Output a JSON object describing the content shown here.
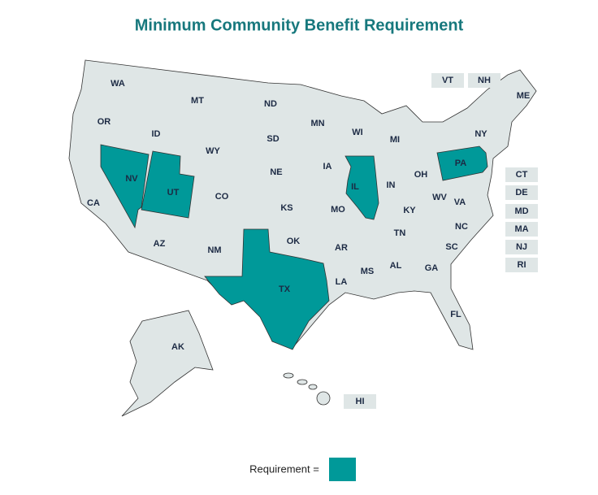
{
  "title": "Minimum Community Benefit Requirement",
  "base_color": "#dfe6e6",
  "requirement_color": "#009999",
  "states": [
    {
      "label": "WA",
      "requirement": false
    },
    {
      "label": "OR",
      "requirement": false
    },
    {
      "label": "CA",
      "requirement": false
    },
    {
      "label": "NV",
      "requirement": true
    },
    {
      "label": "ID",
      "requirement": false
    },
    {
      "label": "MT",
      "requirement": false
    },
    {
      "label": "WY",
      "requirement": false
    },
    {
      "label": "UT",
      "requirement": true
    },
    {
      "label": "CO",
      "requirement": false
    },
    {
      "label": "AZ",
      "requirement": false
    },
    {
      "label": "NM",
      "requirement": false
    },
    {
      "label": "ND",
      "requirement": false
    },
    {
      "label": "SD",
      "requirement": false
    },
    {
      "label": "NE",
      "requirement": false
    },
    {
      "label": "KS",
      "requirement": false
    },
    {
      "label": "OK",
      "requirement": false
    },
    {
      "label": "TX",
      "requirement": true
    },
    {
      "label": "MN",
      "requirement": false
    },
    {
      "label": "IA",
      "requirement": false
    },
    {
      "label": "MO",
      "requirement": false
    },
    {
      "label": "AR",
      "requirement": false
    },
    {
      "label": "LA",
      "requirement": false
    },
    {
      "label": "WI",
      "requirement": false
    },
    {
      "label": "IL",
      "requirement": true
    },
    {
      "label": "MI",
      "requirement": false
    },
    {
      "label": "IN",
      "requirement": false
    },
    {
      "label": "OH",
      "requirement": false
    },
    {
      "label": "KY",
      "requirement": false
    },
    {
      "label": "TN",
      "requirement": false
    },
    {
      "label": "MS",
      "requirement": false
    },
    {
      "label": "AL",
      "requirement": false
    },
    {
      "label": "GA",
      "requirement": false
    },
    {
      "label": "FL",
      "requirement": false
    },
    {
      "label": "SC",
      "requirement": false
    },
    {
      "label": "NC",
      "requirement": false
    },
    {
      "label": "VA",
      "requirement": false
    },
    {
      "label": "WV",
      "requirement": false
    },
    {
      "label": "PA",
      "requirement": true
    },
    {
      "label": "NY",
      "requirement": false
    },
    {
      "label": "ME",
      "requirement": false
    },
    {
      "label": "AK",
      "requirement": false
    }
  ],
  "inset_states": [
    {
      "label": "VT",
      "requirement": false
    },
    {
      "label": "NH",
      "requirement": false
    },
    {
      "label": "CT",
      "requirement": false
    },
    {
      "label": "DE",
      "requirement": false
    },
    {
      "label": "MD",
      "requirement": false
    },
    {
      "label": "MA",
      "requirement": false
    },
    {
      "label": "NJ",
      "requirement": false
    },
    {
      "label": "RI",
      "requirement": false
    },
    {
      "label": "HI",
      "requirement": false
    }
  ],
  "legend": {
    "label": "Requirement ="
  }
}
